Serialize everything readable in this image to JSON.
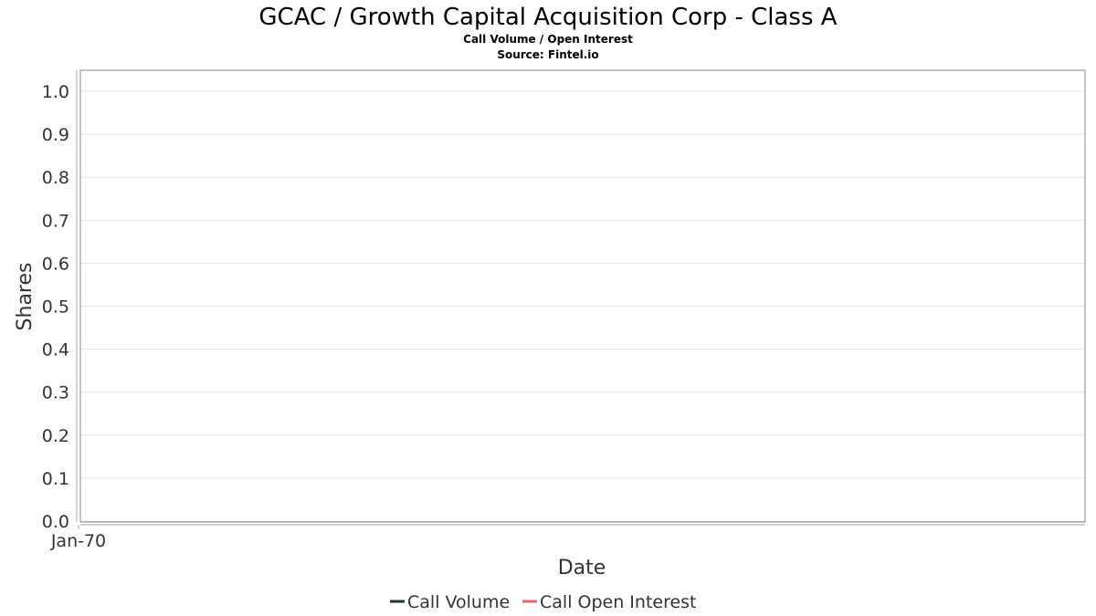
{
  "chart_data": {
    "type": "line",
    "title": "GCAC / Growth Capital Acquisition Corp - Class A",
    "subtitle": "Call Volume / Open Interest",
    "source": "Source: Fintel.io",
    "xlabel": "Date",
    "ylabel": "Shares",
    "x_ticks": [
      "Jan-70"
    ],
    "y_ticks": [
      "0.0",
      "0.1",
      "0.2",
      "0.3",
      "0.4",
      "0.5",
      "0.6",
      "0.7",
      "0.8",
      "0.9",
      "1.0"
    ],
    "ylim": [
      0,
      1.0
    ],
    "grid": true,
    "legend_position": "bottom-center",
    "series": [
      {
        "name": "Call Volume",
        "color": "#1a3a2a",
        "values": []
      },
      {
        "name": "Call Open Interest",
        "color": "#f06060",
        "values": []
      }
    ]
  }
}
